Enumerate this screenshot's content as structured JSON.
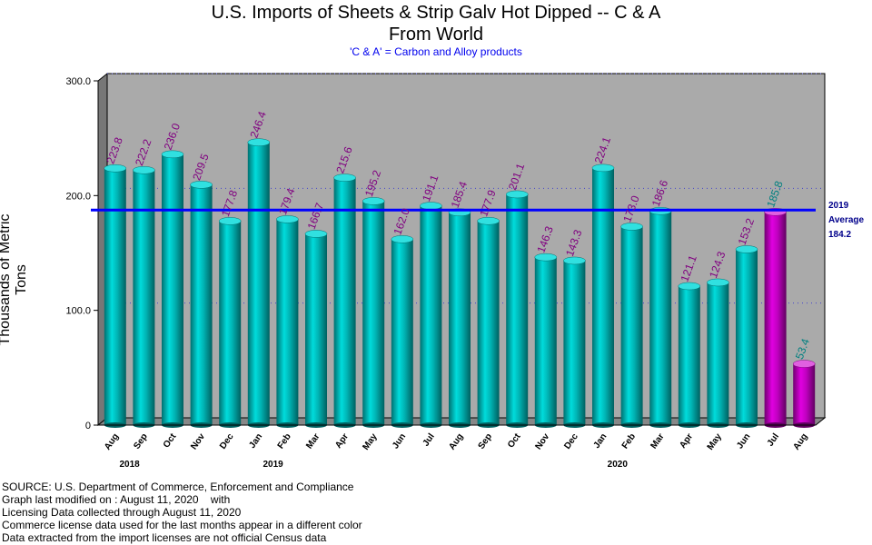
{
  "chart_data": {
    "type": "bar",
    "title_line1": "U.S. Imports of Sheets & Strip Galv Hot Dipped -- C & A",
    "title_line2": "From World",
    "subtitle": "'C & A' = Carbon and Alloy products",
    "ylabel": "Thousands of Metric Tons",
    "ylim": [
      0,
      300
    ],
    "yticks": [
      "0",
      "100.0",
      "200.0",
      "300.0"
    ],
    "ytick_values": [
      0,
      100,
      200,
      300
    ],
    "categories": [
      "Aug",
      "Sep",
      "Oct",
      "Nov",
      "Dec",
      "Jan",
      "Feb",
      "Mar",
      "Apr",
      "May",
      "Jun",
      "Jul",
      "Aug",
      "Sep",
      "Oct",
      "Nov",
      "Dec",
      "Jan",
      "Feb",
      "Mar",
      "Apr",
      "May",
      "Jun",
      "Jul",
      "Aug"
    ],
    "values": [
      223.8,
      222.2,
      236.0,
      209.5,
      177.8,
      246.4,
      179.4,
      166.7,
      215.6,
      195.2,
      162.0,
      191.1,
      185.4,
      177.9,
      201.1,
      146.3,
      143.3,
      224.1,
      173.0,
      186.6,
      121.1,
      124.3,
      153.2,
      185.8,
      53.4
    ],
    "value_labels": [
      "223.8",
      "222.2",
      "236.0",
      "209.5",
      "177.8",
      "246.4",
      "179.4",
      "166.7",
      "215.6",
      "195.2",
      "162.0",
      "191.1",
      "185.4",
      "177.9",
      "201.1",
      "146.3",
      "143.3",
      "224.1",
      "173.0",
      "186.6",
      "121.1",
      "124.3",
      "153.2",
      "185.8",
      "53.4"
    ],
    "license_data_from_index": 23,
    "years": [
      {
        "label": "2018",
        "index": 0.5
      },
      {
        "label": "2019",
        "index": 5.5
      },
      {
        "label": "2020",
        "index": 17.5
      }
    ],
    "average": {
      "value": 184.2,
      "label_lines": [
        "2019",
        "Average",
        "184.2"
      ],
      "color": "#0000ff"
    },
    "colors": {
      "census_bar": "#00c8c8",
      "license_bar": "#cc00cc",
      "census_label": "#800080",
      "license_label": "#008080",
      "plot_bg": "#aaaaaa",
      "grid": "#4444cc"
    },
    "grid": true
  },
  "footer": {
    "lines": [
      "SOURCE: U.S. Department of Commerce, Enforcement and Compliance",
      "Graph last modified on : August 11, 2020    with",
      "Licensing Data collected through August 11, 2020",
      "Commerce license data used for the last months appear in a different color",
      "Data extracted from the import licenses are not official Census data"
    ]
  }
}
